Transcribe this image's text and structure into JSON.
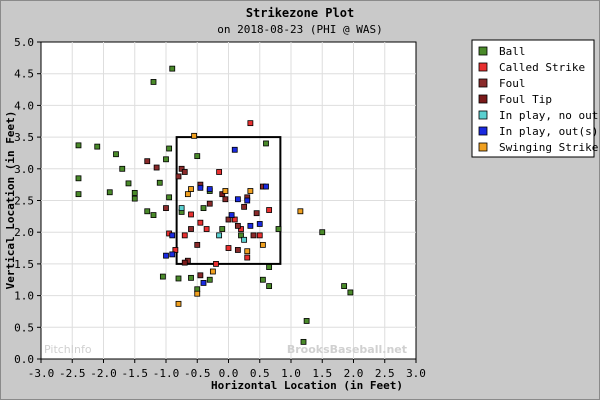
{
  "chart_data": {
    "type": "scatter",
    "title": "Strikezone Plot",
    "subtitle": "on 2018-08-23 (PHI @ WAS)",
    "xlabel": "Horizontal Location (in Feet)",
    "ylabel": "Vertical Location (in Feet)",
    "xlim": [
      -3.0,
      3.0
    ],
    "ylim": [
      0.0,
      5.0
    ],
    "xticks": [
      "-3.0",
      "-2.5",
      "-2.0",
      "-1.5",
      "-1.0",
      "-0.5",
      "0.0",
      "0.5",
      "1.0",
      "1.5",
      "2.0",
      "2.5",
      "3.0"
    ],
    "yticks": [
      "0.0",
      "0.5",
      "1.0",
      "1.5",
      "2.0",
      "2.5",
      "3.0",
      "3.5",
      "4.0",
      "4.5",
      "5.0"
    ],
    "grid": true,
    "legend_position": "top-right",
    "strike_zone": {
      "x": [
        -0.83,
        0.83
      ],
      "y": [
        1.5,
        3.5
      ]
    },
    "watermarks": {
      "left": "PitchInfo",
      "right": "BrooksBaseball.net"
    },
    "series": [
      {
        "name": "Ball",
        "color": "#4a8a2a",
        "points": [
          [
            -1.2,
            4.37
          ],
          [
            -0.9,
            4.58
          ],
          [
            -2.4,
            3.37
          ],
          [
            -2.1,
            3.35
          ],
          [
            -1.8,
            3.23
          ],
          [
            -1.7,
            3.0
          ],
          [
            -1.6,
            2.77
          ],
          [
            -2.4,
            2.85
          ],
          [
            -2.4,
            2.6
          ],
          [
            -1.9,
            2.63
          ],
          [
            -1.5,
            2.62
          ],
          [
            -1.5,
            2.53
          ],
          [
            -1.3,
            2.33
          ],
          [
            -1.2,
            2.27
          ],
          [
            -1.0,
            3.15
          ],
          [
            -0.95,
            3.32
          ],
          [
            -1.1,
            2.78
          ],
          [
            -0.95,
            2.55
          ],
          [
            -0.75,
            2.32
          ],
          [
            -0.5,
            3.2
          ],
          [
            0.6,
            3.4
          ],
          [
            -0.3,
            2.65
          ],
          [
            -0.4,
            2.38
          ],
          [
            -0.1,
            2.05
          ],
          [
            0.2,
            1.95
          ],
          [
            0.8,
            2.05
          ],
          [
            1.5,
            2.0
          ],
          [
            0.65,
            1.45
          ],
          [
            -1.05,
            1.3
          ],
          [
            -0.8,
            1.27
          ],
          [
            -0.6,
            1.28
          ],
          [
            -0.5,
            1.1
          ],
          [
            0.55,
            1.25
          ],
          [
            0.65,
            1.15
          ],
          [
            1.25,
            0.6
          ],
          [
            1.2,
            0.27
          ],
          [
            1.85,
            1.15
          ],
          [
            1.95,
            1.05
          ],
          [
            -0.3,
            1.25
          ]
        ]
      },
      {
        "name": "Called Strike",
        "color": "#e83030",
        "points": [
          [
            0.35,
            3.72
          ],
          [
            -0.95,
            1.98
          ],
          [
            -0.85,
            1.72
          ],
          [
            -0.6,
            2.28
          ],
          [
            -0.35,
            2.05
          ],
          [
            0.0,
            1.75
          ],
          [
            0.2,
            2.05
          ],
          [
            0.5,
            1.95
          ],
          [
            0.65,
            2.35
          ],
          [
            0.1,
            2.2
          ],
          [
            -0.15,
            2.95
          ],
          [
            -0.45,
            2.15
          ],
          [
            -0.7,
            1.95
          ],
          [
            -0.2,
            1.5
          ],
          [
            0.3,
            1.6
          ]
        ]
      },
      {
        "name": "Foul",
        "color": "#8a2a2a",
        "points": [
          [
            -1.3,
            3.12
          ],
          [
            -1.15,
            3.02
          ],
          [
            -0.75,
            3.0
          ],
          [
            -0.7,
            2.95
          ],
          [
            -0.45,
            2.75
          ],
          [
            -0.3,
            2.45
          ],
          [
            -0.05,
            2.52
          ],
          [
            0.3,
            2.55
          ],
          [
            0.55,
            2.72
          ],
          [
            0.45,
            2.3
          ],
          [
            0.25,
            2.4
          ],
          [
            -0.6,
            2.05
          ],
          [
            -0.5,
            1.8
          ],
          [
            0.15,
            1.72
          ],
          [
            -0.45,
            1.32
          ],
          [
            -0.65,
            1.55
          ],
          [
            0.4,
            1.95
          ],
          [
            0.0,
            2.2
          ],
          [
            -1.0,
            2.38
          ],
          [
            -0.8,
            2.88
          ],
          [
            0.15,
            2.1
          ]
        ]
      },
      {
        "name": "Foul Tip",
        "color": "#7a1a1a",
        "points": [
          [
            -0.7,
            1.52
          ],
          [
            -0.1,
            2.6
          ]
        ]
      },
      {
        "name": "In play, no out",
        "color": "#5ad0d0",
        "points": [
          [
            -0.75,
            2.38
          ],
          [
            0.25,
            1.88
          ],
          [
            -0.15,
            1.95
          ]
        ]
      },
      {
        "name": "In play, out(s)",
        "color": "#1a2ae0",
        "points": [
          [
            0.1,
            3.3
          ],
          [
            -0.9,
            1.95
          ],
          [
            -0.45,
            2.7
          ],
          [
            -0.3,
            2.68
          ],
          [
            0.05,
            2.27
          ],
          [
            0.15,
            2.52
          ],
          [
            0.3,
            2.5
          ],
          [
            0.6,
            2.72
          ],
          [
            0.5,
            2.13
          ],
          [
            -0.4,
            1.2
          ],
          [
            -1.0,
            1.63
          ],
          [
            -0.9,
            1.65
          ],
          [
            0.35,
            2.1
          ]
        ]
      },
      {
        "name": "Swinging Strike",
        "color": "#f0a020",
        "points": [
          [
            -0.55,
            3.52
          ],
          [
            -0.6,
            2.68
          ],
          [
            -0.05,
            2.65
          ],
          [
            0.35,
            2.65
          ],
          [
            0.55,
            1.8
          ],
          [
            -0.25,
            1.38
          ],
          [
            -0.5,
            1.03
          ],
          [
            -0.8,
            0.87
          ],
          [
            1.15,
            2.33
          ],
          [
            0.3,
            1.7
          ],
          [
            -0.65,
            2.6
          ]
        ]
      }
    ]
  }
}
